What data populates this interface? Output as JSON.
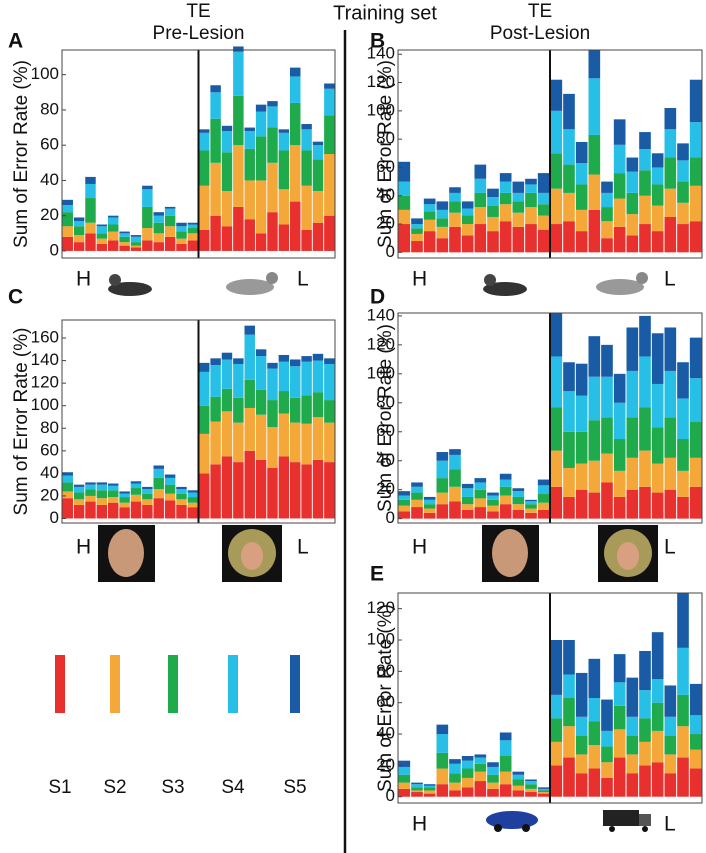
{
  "title": "Training set",
  "legend": [
    {
      "name": "S1",
      "color": "#e8302e"
    },
    {
      "name": "S2",
      "color": "#f5a83a"
    },
    {
      "name": "S3",
      "color": "#1faa4b"
    },
    {
      "name": "S4",
      "color": "#27bfe6"
    },
    {
      "name": "S5",
      "color": "#1a5ba6"
    }
  ],
  "group_colors": [
    "#1f5fa8",
    "#e8302e"
  ],
  "chart_data": [
    {
      "type": "bar",
      "stacked": true,
      "panel": "A",
      "subtitle": [
        "TE",
        "Pre-Lesion"
      ],
      "ylabel": "Sum of Error Rate (%)",
      "group_labels": [
        "H",
        "L"
      ],
      "ylim": [
        -4,
        114
      ],
      "yticks": [
        0,
        20,
        40,
        60,
        80,
        100
      ],
      "series": [
        {
          "values": [
            8,
            5,
            10,
            4,
            6,
            3,
            2,
            6,
            5,
            8,
            4,
            6,
            12,
            20,
            14,
            25,
            18,
            10,
            22,
            15,
            28,
            12,
            16,
            20
          ]
        },
        {
          "values": [
            6,
            4,
            6,
            3,
            5,
            2,
            1,
            7,
            5,
            6,
            3,
            4,
            25,
            30,
            20,
            35,
            22,
            30,
            28,
            20,
            32,
            25,
            18,
            35
          ]
        },
        {
          "values": [
            8,
            5,
            14,
            3,
            4,
            3,
            2,
            12,
            6,
            6,
            4,
            3,
            20,
            25,
            22,
            28,
            18,
            25,
            20,
            22,
            24,
            20,
            18,
            22
          ]
        },
        {
          "values": [
            4,
            3,
            8,
            4,
            4,
            2,
            3,
            10,
            4,
            4,
            3,
            2,
            10,
            15,
            12,
            25,
            10,
            14,
            12,
            10,
            15,
            12,
            8,
            15
          ]
        },
        {
          "values": [
            3,
            2,
            4,
            1,
            1,
            1,
            1,
            2,
            2,
            1,
            2,
            1,
            2,
            4,
            3,
            3,
            2,
            4,
            3,
            2,
            5,
            3,
            2,
            3
          ]
        }
      ]
    },
    {
      "type": "bar",
      "stacked": true,
      "panel": "B",
      "subtitle": [
        "TE",
        "Post-Lesion"
      ],
      "ylabel": "Sum of Error Rate (%)",
      "group_labels": [
        "H",
        "L"
      ],
      "ylim": [
        -4,
        143
      ],
      "yticks": [
        0,
        20,
        40,
        60,
        80,
        100,
        120,
        140
      ],
      "series": [
        {
          "values": [
            20,
            8,
            15,
            10,
            18,
            12,
            20,
            15,
            22,
            18,
            20,
            16,
            20,
            22,
            15,
            30,
            10,
            18,
            12,
            20,
            15,
            25,
            20,
            22
          ]
        },
        {
          "values": [
            10,
            5,
            8,
            8,
            10,
            8,
            12,
            10,
            12,
            10,
            12,
            10,
            25,
            20,
            15,
            25,
            12,
            20,
            15,
            20,
            18,
            20,
            15,
            25
          ]
        },
        {
          "values": [
            10,
            4,
            6,
            6,
            8,
            6,
            10,
            8,
            8,
            8,
            10,
            8,
            25,
            20,
            18,
            28,
            10,
            18,
            15,
            18,
            15,
            22,
            15,
            20
          ]
        },
        {
          "values": [
            10,
            3,
            5,
            6,
            6,
            5,
            10,
            6,
            8,
            6,
            6,
            8,
            30,
            25,
            15,
            40,
            10,
            20,
            15,
            15,
            12,
            20,
            15,
            25
          ]
        },
        {
          "values": [
            14,
            4,
            4,
            6,
            4,
            5,
            10,
            6,
            6,
            8,
            4,
            14,
            22,
            25,
            15,
            20,
            8,
            18,
            10,
            12,
            10,
            15,
            12,
            30
          ]
        }
      ]
    },
    {
      "type": "bar",
      "stacked": true,
      "panel": "C",
      "ylabel": "Sum of Error Rate (%)",
      "group_labels": [
        "H",
        "L"
      ],
      "ylim": [
        -4,
        176
      ],
      "yticks": [
        0,
        20,
        40,
        60,
        80,
        100,
        120,
        140,
        160
      ],
      "series": [
        {
          "values": [
            18,
            12,
            15,
            12,
            14,
            10,
            15,
            12,
            18,
            16,
            12,
            10,
            40,
            48,
            55,
            50,
            60,
            52,
            45,
            55,
            50,
            48,
            52,
            50
          ]
        },
        {
          "values": [
            6,
            5,
            5,
            6,
            5,
            4,
            6,
            5,
            8,
            6,
            5,
            4,
            35,
            38,
            40,
            35,
            38,
            40,
            36,
            38,
            35,
            36,
            38,
            35
          ]
        },
        {
          "values": [
            8,
            6,
            6,
            7,
            6,
            5,
            6,
            5,
            10,
            8,
            5,
            5,
            25,
            22,
            20,
            22,
            25,
            22,
            24,
            20,
            22,
            25,
            22,
            20
          ]
        },
        {
          "values": [
            6,
            5,
            4,
            5,
            4,
            3,
            4,
            4,
            8,
            6,
            4,
            4,
            30,
            28,
            26,
            30,
            40,
            30,
            28,
            26,
            28,
            30,
            28,
            32
          ]
        },
        {
          "values": [
            3,
            2,
            2,
            2,
            2,
            2,
            2,
            2,
            3,
            3,
            2,
            2,
            8,
            6,
            6,
            5,
            8,
            6,
            5,
            6,
            6,
            5,
            6,
            5
          ]
        }
      ]
    },
    {
      "type": "bar",
      "stacked": true,
      "panel": "D",
      "ylabel": "Sum of Error Rate (%)",
      "group_labels": [
        "H",
        "L"
      ],
      "ylim": [
        -3,
        142
      ],
      "yticks": [
        0,
        20,
        40,
        60,
        80,
        100,
        120,
        140
      ],
      "series": [
        {
          "values": [
            5,
            8,
            4,
            10,
            12,
            6,
            8,
            5,
            10,
            6,
            4,
            6,
            22,
            15,
            20,
            18,
            25,
            15,
            20,
            22,
            18,
            20,
            15,
            22
          ]
        },
        {
          "values": [
            4,
            5,
            3,
            8,
            10,
            4,
            6,
            4,
            6,
            4,
            3,
            5,
            25,
            20,
            18,
            22,
            20,
            18,
            22,
            25,
            20,
            22,
            18,
            20
          ]
        },
        {
          "values": [
            4,
            5,
            3,
            10,
            12,
            5,
            6,
            4,
            6,
            5,
            3,
            6,
            30,
            25,
            22,
            28,
            25,
            22,
            28,
            30,
            25,
            28,
            22,
            25
          ]
        },
        {
          "values": [
            3,
            4,
            3,
            12,
            10,
            6,
            5,
            3,
            5,
            4,
            2,
            6,
            35,
            28,
            25,
            30,
            28,
            25,
            32,
            35,
            30,
            32,
            28,
            30
          ]
        },
        {
          "values": [
            3,
            3,
            2,
            6,
            4,
            3,
            3,
            2,
            4,
            2,
            1,
            4,
            30,
            20,
            22,
            28,
            22,
            20,
            30,
            28,
            35,
            30,
            25,
            28
          ]
        }
      ]
    },
    {
      "type": "bar",
      "stacked": true,
      "panel": "E",
      "ylabel": "Sum of Error Rate (%)",
      "group_labels": [
        "H",
        "L"
      ],
      "ylim": [
        -4,
        130
      ],
      "yticks": [
        0,
        20,
        40,
        60,
        80,
        100,
        120
      ],
      "series": [
        {
          "values": [
            5,
            3,
            2,
            8,
            4,
            6,
            10,
            5,
            8,
            4,
            3,
            2,
            20,
            25,
            15,
            18,
            12,
            25,
            15,
            20,
            22,
            15,
            25,
            18
          ]
        },
        {
          "values": [
            4,
            1,
            2,
            10,
            5,
            6,
            6,
            4,
            8,
            3,
            2,
            1,
            15,
            20,
            12,
            15,
            10,
            18,
            12,
            15,
            20,
            12,
            20,
            12
          ]
        },
        {
          "values": [
            5,
            2,
            2,
            10,
            6,
            6,
            5,
            5,
            10,
            4,
            3,
            1,
            15,
            18,
            12,
            15,
            10,
            15,
            12,
            15,
            18,
            12,
            20,
            10
          ]
        },
        {
          "values": [
            5,
            2,
            1,
            12,
            6,
            5,
            4,
            5,
            10,
            3,
            2,
            1,
            15,
            15,
            12,
            15,
            10,
            15,
            12,
            18,
            15,
            12,
            30,
            12
          ]
        },
        {
          "values": [
            4,
            1,
            1,
            6,
            3,
            3,
            2,
            3,
            5,
            2,
            1,
            1,
            35,
            22,
            28,
            25,
            20,
            18,
            25,
            25,
            30,
            20,
            35,
            20
          ]
        }
      ]
    }
  ]
}
